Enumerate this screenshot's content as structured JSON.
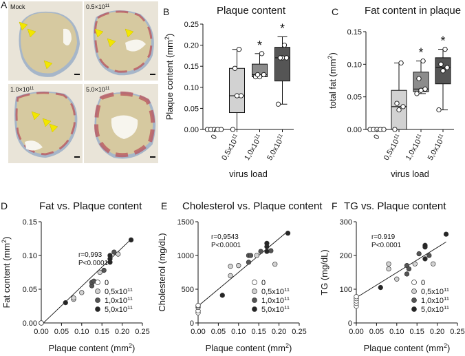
{
  "colors": {
    "g0": "#ffffff",
    "g1": "#d2d2d2",
    "g2": "#8c8c8c",
    "g3": "#555555",
    "g4": "#262626",
    "arrow": "#f2e600",
    "tissue_bg": "#e9e4d8",
    "plaque": "#d6c9a0",
    "wall": "#9fb0c8",
    "stain": "#b8515b"
  },
  "panel_a": {
    "letter": "A",
    "images": [
      {
        "label": "Mock"
      },
      {
        "label_base": "0.5×10",
        "label_exp": "11"
      },
      {
        "label_base": "1.0×10",
        "label_exp": "11"
      },
      {
        "label_base": "5.0×10",
        "label_exp": "11"
      }
    ]
  },
  "chart_data": [
    {
      "type": "box",
      "panel": "B",
      "title": "Plaque content",
      "ylabel_base": "Plaque content (mm",
      "ylabel_exp": "2",
      "ylabel_end": ")",
      "xlabel": "virus load",
      "ylim": [
        0,
        0.25
      ],
      "yticks": [
        "0.00",
        "0.05",
        "0.10",
        "0.15",
        "0.20",
        "0.25"
      ],
      "categories": [
        {
          "base": "0",
          "exp": ""
        },
        {
          "base": "0,5x10",
          "exp": "11"
        },
        {
          "base": "1,0x10",
          "exp": "11"
        },
        {
          "base": "5,0x10",
          "exp": "11"
        }
      ],
      "boxes": [
        {
          "min": 0,
          "q1": 0,
          "median": 0,
          "q3": 0,
          "max": 0,
          "points": [
            0,
            0,
            0,
            0,
            0
          ],
          "star": ""
        },
        {
          "min": 0,
          "q1": 0.04,
          "median": 0.08,
          "q3": 0.145,
          "max": 0.19,
          "points": [
            0,
            0.08,
            0.08,
            0.145,
            0.19
          ],
          "star": ""
        },
        {
          "min": 0.125,
          "q1": 0.125,
          "median": 0.13,
          "q3": 0.155,
          "max": 0.18,
          "points": [
            0.125,
            0.125,
            0.13,
            0.13,
            0.18
          ],
          "star": "*"
        },
        {
          "min": 0.06,
          "q1": 0.115,
          "median": 0.17,
          "q3": 0.195,
          "max": 0.22,
          "points": [
            0.06,
            0.17,
            0.17,
            0.17,
            0.2
          ],
          "star": "*"
        }
      ]
    },
    {
      "type": "box",
      "panel": "C",
      "title": "Fat content in plaque",
      "ylabel_base": "total fat (mm",
      "ylabel_exp": "2",
      "ylabel_end": ")",
      "xlabel": "virus load",
      "ylim": [
        0,
        0.15
      ],
      "yticks": [
        "0.00",
        "0.05",
        "0.10",
        "0.15"
      ],
      "categories": [
        {
          "base": "0",
          "exp": ""
        },
        {
          "base": "0,5x10",
          "exp": "11"
        },
        {
          "base": "1,0x10",
          "exp": "11"
        },
        {
          "base": "5,0x10",
          "exp": "11"
        }
      ],
      "boxes": [
        {
          "min": 0,
          "q1": 0,
          "median": 0,
          "q3": 0,
          "max": 0,
          "points": [
            0,
            0,
            0,
            0,
            0
          ],
          "star": ""
        },
        {
          "min": 0,
          "q1": 0,
          "median": 0.035,
          "q3": 0.06,
          "max": 0.102,
          "points": [
            0,
            0.03,
            0.035,
            0.04,
            0.102
          ],
          "star": ""
        },
        {
          "min": 0.055,
          "q1": 0.058,
          "median": 0.062,
          "q3": 0.088,
          "max": 0.105,
          "points": [
            0.055,
            0.06,
            0.062,
            0.078,
            0.105
          ],
          "star": "*"
        },
        {
          "min": 0.03,
          "q1": 0.07,
          "median": 0.095,
          "q3": 0.11,
          "max": 0.123,
          "points": [
            0.03,
            0.09,
            0.095,
            0.1,
            0.123
          ],
          "star": "*"
        }
      ]
    },
    {
      "type": "scatter",
      "panel": "D",
      "title": "Fat vs. Plaque content",
      "xlabel_base": "Plaque content (mm",
      "xlabel_exp": "2",
      "xlabel_end": ")",
      "ylabel_base": "Fat content (mm",
      "ylabel_exp": "2",
      "ylabel_end": ")",
      "xlim": [
        0,
        0.25
      ],
      "ylim": [
        0,
        0.15
      ],
      "xticks": [
        "0.00",
        "0.05",
        "0.10",
        "0.15",
        "0.20",
        "0.25"
      ],
      "yticks": [
        "0.00",
        "0.05",
        "0.10",
        "0.15"
      ],
      "annotation": [
        "r=0,993",
        "P<0.0001"
      ],
      "fit": [
        [
          0,
          -0.003
        ],
        [
          0.222,
          0.124
        ]
      ],
      "series": [
        {
          "name": "0",
          "points": [
            [
              0,
              0
            ],
            [
              0,
              0
            ],
            [
              0,
              0
            ],
            [
              0,
              0
            ],
            [
              0,
              0
            ]
          ]
        },
        {
          "name": "0,5x10¹¹",
          "points": [
            [
              0.08,
              0.035
            ],
            [
              0.08,
              0.037
            ],
            [
              0.1,
              0.045
            ],
            [
              0.145,
              0.075
            ],
            [
              0.19,
              0.102
            ]
          ]
        },
        {
          "name": "1,0x10¹¹",
          "points": [
            [
              0.125,
              0.055
            ],
            [
              0.125,
              0.06
            ],
            [
              0.13,
              0.062
            ],
            [
              0.155,
              0.078
            ],
            [
              0.18,
              0.105
            ]
          ]
        },
        {
          "name": "5,0x10¹¹",
          "points": [
            [
              0.06,
              0.03
            ],
            [
              0.17,
              0.09
            ],
            [
              0.17,
              0.095
            ],
            [
              0.17,
              0.1
            ],
            [
              0.222,
              0.123
            ]
          ]
        }
      ]
    },
    {
      "type": "scatter",
      "panel": "E",
      "title": "Cholesterol vs. Plaque content",
      "xlabel_base": "Plaque content (mm",
      "xlabel_exp": "2",
      "xlabel_end": ")",
      "ylabel_base": "Cholesterol (mg/dL)",
      "ylabel_exp": "",
      "ylabel_end": "",
      "xlim": [
        0,
        0.25
      ],
      "ylim": [
        0,
        1500
      ],
      "xticks": [
        "0.00",
        "0.05",
        "0.10",
        "0.15",
        "0.20",
        "0.25"
      ],
      "yticks": [
        "0",
        "500",
        "1000",
        "1500"
      ],
      "annotation": [
        "r=0,9543",
        "P<0.0001"
      ],
      "fit": [
        [
          0,
          250
        ],
        [
          0.222,
          1360
        ]
      ],
      "series": [
        {
          "name": "0",
          "points": [
            [
              0,
              150
            ],
            [
              0,
              180
            ],
            [
              0,
              230
            ],
            [
              0,
              250
            ],
            [
              0,
              260
            ]
          ]
        },
        {
          "name": "0,5x10¹¹",
          "points": [
            [
              0.08,
              700
            ],
            [
              0.08,
              840
            ],
            [
              0.1,
              850
            ],
            [
              0.145,
              1000
            ],
            [
              0.19,
              870
            ]
          ]
        },
        {
          "name": "1,0x10¹¹",
          "points": [
            [
              0.125,
              900
            ],
            [
              0.125,
              1000
            ],
            [
              0.13,
              1000
            ],
            [
              0.155,
              1060
            ],
            [
              0.18,
              1070
            ]
          ]
        },
        {
          "name": "5,0x10¹¹",
          "points": [
            [
              0.06,
              410
            ],
            [
              0.17,
              1060
            ],
            [
              0.17,
              1130
            ],
            [
              0.17,
              1180
            ],
            [
              0.222,
              1330
            ]
          ]
        }
      ]
    },
    {
      "type": "scatter",
      "panel": "F",
      "title": "TG vs. Plaque content",
      "xlabel_base": "Plaque content (mm",
      "xlabel_exp": "2",
      "xlabel_end": ")",
      "ylabel_base": "TG (mg/dL)",
      "ylabel_exp": "",
      "ylabel_end": "",
      "xlim": [
        0,
        0.25
      ],
      "ylim": [
        0,
        300
      ],
      "xticks": [
        "0.00",
        "0.05",
        "0.10",
        "0.15",
        "0.20",
        "0.25"
      ],
      "yticks": [
        "0",
        "100",
        "200",
        "300"
      ],
      "annotation": [
        "r=0.919",
        "P<0.0001"
      ],
      "fit": [
        [
          0,
          75
        ],
        [
          0.222,
          240
        ]
      ],
      "series": [
        {
          "name": "0",
          "points": [
            [
              0,
              50
            ],
            [
              0,
              58
            ],
            [
              0,
              65
            ],
            [
              0,
              72
            ],
            [
              0,
              78
            ]
          ]
        },
        {
          "name": "0,5x10¹¹",
          "points": [
            [
              0.08,
              160
            ],
            [
              0.08,
              175
            ],
            [
              0.1,
              130
            ],
            [
              0.145,
              175
            ],
            [
              0.19,
              175
            ]
          ]
        },
        {
          "name": "1,0x10¹¹",
          "points": [
            [
              0.125,
              145
            ],
            [
              0.125,
              170
            ],
            [
              0.13,
              160
            ],
            [
              0.155,
              205
            ],
            [
              0.18,
              200
            ]
          ]
        },
        {
          "name": "5,0x10¹¹",
          "points": [
            [
              0.06,
              105
            ],
            [
              0.17,
              190
            ],
            [
              0.17,
              225
            ],
            [
              0.17,
              230
            ],
            [
              0.222,
              263
            ]
          ]
        }
      ]
    }
  ]
}
